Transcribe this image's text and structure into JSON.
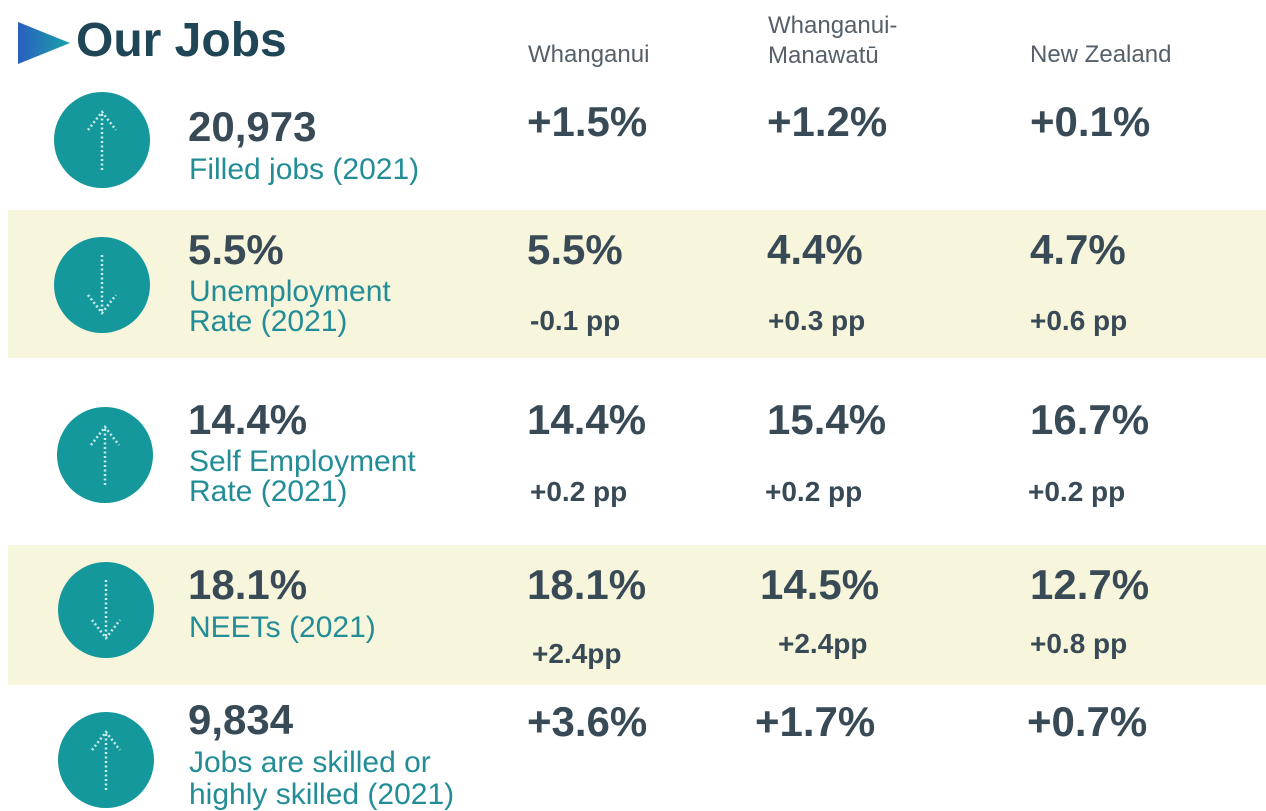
{
  "title": "Our Jobs",
  "columns": [
    {
      "lines": [
        "Whanganui"
      ]
    },
    {
      "lines": [
        "Whanganui-",
        "Manawatū"
      ]
    },
    {
      "lines": [
        "New Zealand"
      ]
    }
  ],
  "rows": [
    {
      "direction": "up",
      "value": "20,973",
      "label": [
        "Filled jobs (2021)"
      ],
      "cells": [
        {
          "main": "+1.5%"
        },
        {
          "main": "+1.2%"
        },
        {
          "main": "+0.1%"
        }
      ]
    },
    {
      "direction": "down",
      "value": "5.5%",
      "label": [
        "Unemployment",
        "Rate (2021)"
      ],
      "cells": [
        {
          "main": "5.5%",
          "sub": "-0.1 pp"
        },
        {
          "main": "4.4%",
          "sub": "+0.3 pp"
        },
        {
          "main": "4.7%",
          "sub": "+0.6 pp"
        }
      ]
    },
    {
      "direction": "up",
      "value": "14.4%",
      "label": [
        "Self Employment",
        "Rate (2021)"
      ],
      "cells": [
        {
          "main": "14.4%",
          "sub": "+0.2 pp"
        },
        {
          "main": "15.4%",
          "sub": "+0.2 pp"
        },
        {
          "main": "16.7%",
          "sub": "+0.2 pp"
        }
      ]
    },
    {
      "direction": "down",
      "value": "18.1%",
      "label": [
        "NEETs (2021)"
      ],
      "cells": [
        {
          "main": "18.1%",
          "sub": "+2.4pp"
        },
        {
          "main": "14.5%",
          "sub": "+2.4pp"
        },
        {
          "main": "12.7%",
          "sub": "+0.8 pp"
        }
      ]
    },
    {
      "direction": "up",
      "value": "9,834",
      "label": [
        "Jobs are skilled or",
        "highly skilled (2021)"
      ],
      "cells": [
        {
          "main": "+3.6%"
        },
        {
          "main": "+1.7%"
        },
        {
          "main": "+0.7%"
        }
      ]
    }
  ]
}
